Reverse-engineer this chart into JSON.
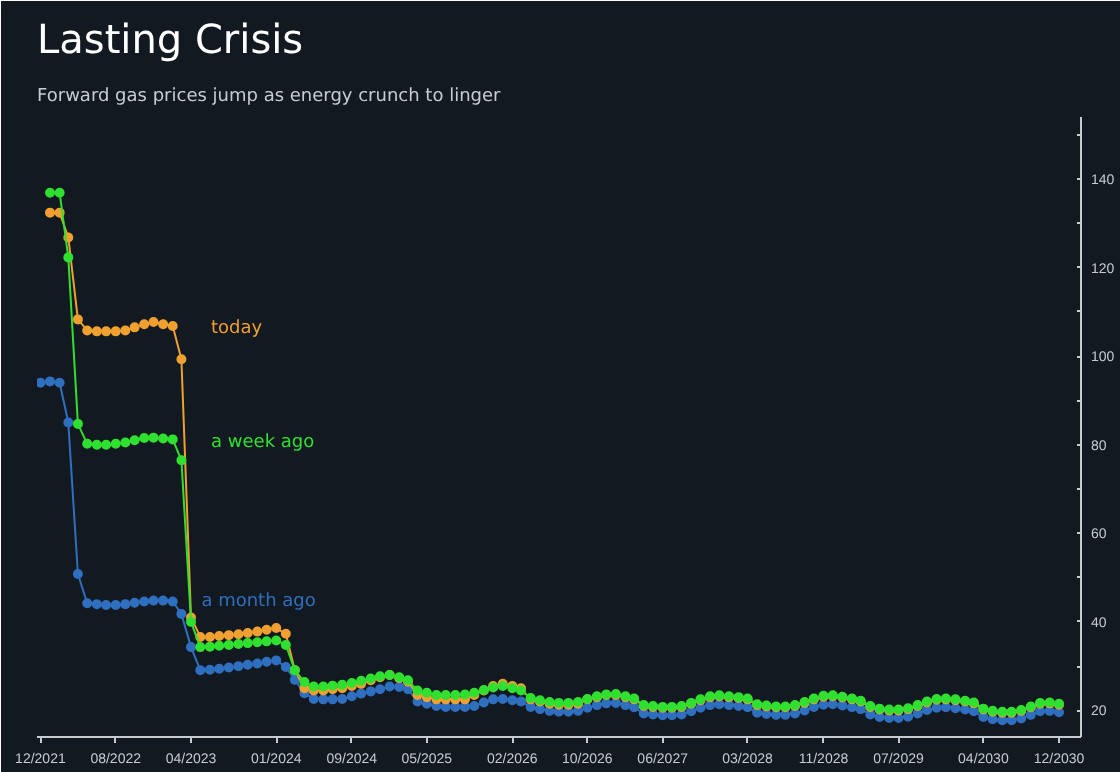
{
  "chart_data": {
    "type": "line",
    "title": "Lasting Crisis",
    "subtitle": "Forward gas prices jump as energy crunch to linger",
    "x": [
      "2022-01",
      "2022-02",
      "2022-03",
      "2022-04",
      "2022-05",
      "2022-06",
      "2022-07",
      "2022-08",
      "2022-09",
      "2022-10",
      "2022-11",
      "2022-12",
      "2023-01",
      "2023-02",
      "2023-03",
      "2023-04",
      "2023-05",
      "2023-06",
      "2023-07",
      "2023-08",
      "2023-09",
      "2023-10",
      "2023-11",
      "2023-12",
      "2024-01",
      "2024-02",
      "2024-03",
      "2024-04",
      "2024-05",
      "2024-06",
      "2024-07",
      "2024-08",
      "2024-09",
      "2024-10",
      "2024-11",
      "2024-12",
      "2025-01",
      "2025-02",
      "2025-03",
      "2025-04",
      "2025-05",
      "2025-06",
      "2025-07",
      "2025-08",
      "2025-09",
      "2025-10",
      "2025-11",
      "2025-12",
      "2026-01",
      "2026-02",
      "2026-03",
      "2026-04",
      "2026-05",
      "2026-06",
      "2026-07",
      "2026-08",
      "2026-09",
      "2026-10",
      "2026-11",
      "2026-12",
      "2027-01",
      "2027-02",
      "2027-03",
      "2027-04",
      "2027-05",
      "2027-06",
      "2027-07",
      "2027-08",
      "2027-09",
      "2027-10",
      "2027-11",
      "2027-12",
      "2028-01",
      "2028-02",
      "2028-03",
      "2028-04",
      "2028-05",
      "2028-06",
      "2028-07",
      "2028-08",
      "2028-09",
      "2028-10",
      "2028-11",
      "2028-12",
      "2029-01",
      "2029-02",
      "2029-03",
      "2029-04",
      "2029-05",
      "2029-06",
      "2029-07",
      "2029-08",
      "2029-09",
      "2029-10",
      "2029-11",
      "2029-12",
      "2030-01",
      "2030-02",
      "2030-03",
      "2030-04",
      "2030-05",
      "2030-06",
      "2030-07",
      "2030-08",
      "2030-09",
      "2030-10",
      "2030-11",
      "2030-12"
    ],
    "series": [
      {
        "name": "a month ago",
        "color": "#2f6fc0",
        "x": [
          "2021-12",
          "2022-01",
          "2022-02",
          "2022-03",
          "2022-04",
          "2022-05",
          "2022-06",
          "2022-07",
          "2022-08",
          "2022-09",
          "2022-10",
          "2022-11",
          "2022-12",
          "2023-01",
          "2023-02",
          "2023-03",
          "2023-04",
          "2023-05",
          "2023-06",
          "2023-07",
          "2023-08",
          "2023-09",
          "2023-10",
          "2023-11",
          "2023-12",
          "2024-01",
          "2024-02",
          "2024-03",
          "2024-04",
          "2024-05",
          "2024-06",
          "2024-07",
          "2024-08",
          "2024-09",
          "2024-10",
          "2024-11",
          "2024-12",
          "2025-01",
          "2025-02",
          "2025-03",
          "2025-04",
          "2025-05",
          "2025-06",
          "2025-07",
          "2025-08",
          "2025-09",
          "2025-10",
          "2025-11",
          "2025-12",
          "2026-01",
          "2026-02",
          "2026-03",
          "2026-04",
          "2026-05",
          "2026-06",
          "2026-07",
          "2026-08",
          "2026-09",
          "2026-10",
          "2026-11",
          "2026-12",
          "2027-01",
          "2027-02",
          "2027-03",
          "2027-04",
          "2027-05",
          "2027-06",
          "2027-07",
          "2027-08",
          "2027-09",
          "2027-10",
          "2027-11",
          "2027-12",
          "2028-01",
          "2028-02",
          "2028-03",
          "2028-04",
          "2028-05",
          "2028-06",
          "2028-07",
          "2028-08",
          "2028-09",
          "2028-10",
          "2028-11",
          "2028-12",
          "2029-01",
          "2029-02",
          "2029-03",
          "2029-04",
          "2029-05",
          "2029-06",
          "2029-07",
          "2029-08",
          "2029-09",
          "2029-10",
          "2029-11",
          "2029-12",
          "2030-01",
          "2030-02",
          "2030-03",
          "2030-04",
          "2030-05",
          "2030-06",
          "2030-07",
          "2030-08",
          "2030-09",
          "2030-10",
          "2030-11",
          "2030-12"
        ],
        "values": [
          94,
          94.3,
          94,
          85,
          50.8,
          44.2,
          44,
          43.8,
          43.8,
          44,
          44.3,
          44.6,
          44.8,
          44.8,
          44.6,
          41.8,
          34.3,
          29.1,
          29.2,
          29.4,
          29.7,
          30,
          30.3,
          30.6,
          31,
          31.3,
          29.8,
          26.9,
          23.9,
          22.6,
          22.5,
          22.5,
          22.6,
          23.2,
          23.8,
          24.3,
          24.8,
          25.4,
          25.3,
          24.8,
          22,
          21.5,
          21,
          20.8,
          20.8,
          20.8,
          21,
          21.8,
          22.5,
          22.6,
          22.3,
          22,
          20.8,
          20.3,
          19.9,
          19.7,
          19.7,
          19.9,
          20.6,
          21.2,
          21.6,
          21.7,
          21.2,
          20.7,
          19.3,
          19.1,
          18.9,
          18.9,
          19.1,
          19.8,
          20.6,
          21.2,
          21.4,
          21.2,
          21,
          20.7,
          19.5,
          19.2,
          19,
          19,
          19.3,
          20,
          20.8,
          21.3,
          21.4,
          21.1,
          20.7,
          20.3,
          19.1,
          18.5,
          18.3,
          18.3,
          18.6,
          19.3,
          20.1,
          20.6,
          20.7,
          20.5,
          20.2,
          19.8,
          18.5,
          18,
          17.8,
          17.8,
          18.2,
          19,
          19.8,
          19.9,
          19.6
        ]
      },
      {
        "name": "today",
        "color": "#f0a030",
        "values": [
          132.4,
          132.4,
          126.8,
          108.3,
          105.8,
          105.6,
          105.6,
          105.6,
          105.8,
          106.5,
          107.2,
          107.7,
          107.2,
          106.8,
          99.3,
          41,
          36.6,
          36.6,
          36.8,
          37,
          37.2,
          37.5,
          37.8,
          38.2,
          38.6,
          37.3,
          29.1,
          25,
          24.5,
          24.5,
          24.8,
          25,
          25.5,
          26,
          26.8,
          27.5,
          28,
          27.3,
          26.5,
          23.5,
          23,
          22.5,
          22.5,
          22.5,
          22.5,
          23.5,
          24.5,
          25.5,
          26,
          25.5,
          25,
          22.5,
          22,
          21.5,
          21.3,
          21.3,
          21.5,
          22.5,
          23,
          23.5,
          23.5,
          23,
          22.5,
          21,
          20.8,
          20.6,
          20.6,
          20.8,
          21.5,
          22.3,
          23,
          23.2,
          23,
          22.8,
          22.5,
          21.2,
          20.9,
          20.7,
          20.7,
          21,
          21.7,
          22.5,
          23.1,
          23.2,
          22.9,
          22.5,
          22,
          20.8,
          20.2,
          20,
          20,
          20.3,
          21,
          21.8,
          22.4,
          22.5,
          22.3,
          22,
          21.6,
          20.2,
          19.7,
          19.5,
          19.5,
          19.9,
          20.7,
          21.5,
          21.6,
          21.3
        ]
      },
      {
        "name": "a week ago",
        "color": "#30e030",
        "values": [
          136.9,
          136.9,
          122.3,
          84.7,
          80.2,
          80,
          80,
          80.2,
          80.5,
          81,
          81.5,
          81.6,
          81.4,
          81.2,
          76.5,
          40,
          34.3,
          34.4,
          34.6,
          34.8,
          35,
          35.2,
          35.4,
          35.6,
          35.8,
          34.8,
          29.1,
          26.4,
          25.4,
          25.4,
          25.6,
          25.8,
          26.2,
          26.7,
          27.2,
          27.7,
          28,
          27.5,
          26.8,
          24.5,
          24,
          23.5,
          23.5,
          23.5,
          23.6,
          24,
          24.6,
          25.2,
          25.5,
          25,
          24.5,
          22.8,
          22.3,
          21.9,
          21.7,
          21.7,
          21.9,
          22.6,
          23.2,
          23.6,
          23.7,
          23.2,
          22.7,
          21.2,
          21,
          20.8,
          20.8,
          21,
          21.7,
          22.5,
          23.2,
          23.4,
          23.2,
          23,
          22.7,
          21.4,
          21.1,
          20.9,
          20.9,
          21.2,
          21.9,
          22.7,
          23.3,
          23.4,
          23.1,
          22.7,
          22.2,
          21,
          20.4,
          20.2,
          20.2,
          20.5,
          21.2,
          22,
          22.6,
          22.7,
          22.5,
          22.2,
          21.8,
          20.4,
          19.9,
          19.7,
          19.7,
          20.1,
          20.9,
          21.7,
          21.8,
          21.5
        ]
      }
    ],
    "xlim": [
      "2021-11-20",
      "2031-02-10"
    ],
    "xticks": [
      {
        "value": "2021-12",
        "label": "12/2021"
      },
      {
        "value": "2022-08",
        "label": "08/2022"
      },
      {
        "value": "2023-04",
        "label": "04/2023"
      },
      {
        "value": "2024-01",
        "label": "01/2024"
      },
      {
        "value": "2024-09",
        "label": "09/2024"
      },
      {
        "value": "2025-05",
        "label": "05/2025"
      },
      {
        "value": "2026-02",
        "label": "02/2026"
      },
      {
        "value": "2026-10",
        "label": "10/2026"
      },
      {
        "value": "2027-06",
        "label": "06/2027"
      },
      {
        "value": "2028-03",
        "label": "03/2028"
      },
      {
        "value": "2028-11",
        "label": "11/2028"
      },
      {
        "value": "2029-07",
        "label": "07/2029"
      },
      {
        "value": "2030-04",
        "label": "04/2030"
      },
      {
        "value": "2030-12",
        "label": "12/2030"
      }
    ],
    "ylim": [
      14,
      154
    ],
    "yticks": [
      20,
      {
        "value": 30,
        "label": null
      },
      40,
      {
        "value": 50,
        "label": null
      },
      60,
      {
        "value": 70,
        "label": null
      },
      80,
      {
        "value": 90,
        "label": null
      },
      100,
      {
        "value": 110,
        "label": null
      },
      120,
      {
        "value": 130,
        "label": null
      },
      140,
      {
        "value": 150,
        "label": null
      }
    ],
    "marker": "circle",
    "line_style": "solid"
  }
}
